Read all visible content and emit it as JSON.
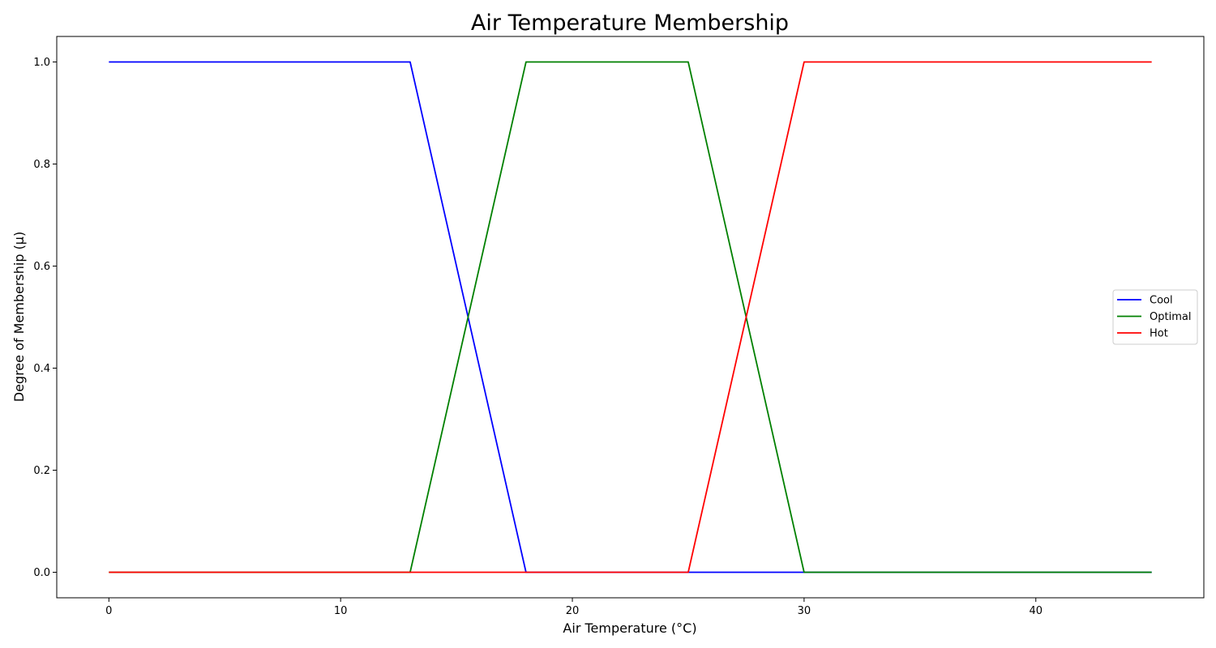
{
  "chart_data": {
    "type": "line",
    "title": "Air Temperature Membership",
    "xlabel": "Air Temperature (°C)",
    "ylabel": "Degree of Membership (μ)",
    "xlim": [
      -2.25,
      47.25
    ],
    "ylim": [
      -0.05,
      1.05
    ],
    "xticks": [
      0,
      10,
      20,
      30,
      40
    ],
    "xtick_labels": [
      "0",
      "10",
      "20",
      "30",
      "40"
    ],
    "yticks": [
      0.0,
      0.2,
      0.4,
      0.6,
      0.8,
      1.0
    ],
    "ytick_labels": [
      "0.0",
      "0.2",
      "0.4",
      "0.6",
      "0.8",
      "1.0"
    ],
    "grid": false,
    "legend_position": "center-right",
    "series": [
      {
        "name": "Cool",
        "color": "#0000ff",
        "x": [
          0,
          13,
          18,
          45
        ],
        "y": [
          1,
          1,
          0,
          0
        ]
      },
      {
        "name": "Optimal",
        "color": "#008000",
        "x": [
          0,
          13,
          18,
          25,
          30,
          45
        ],
        "y": [
          0,
          0,
          1,
          1,
          0,
          0
        ]
      },
      {
        "name": "Hot",
        "color": "#ff0000",
        "x": [
          0,
          25,
          30,
          45
        ],
        "y": [
          0,
          0,
          1,
          1
        ]
      }
    ]
  }
}
